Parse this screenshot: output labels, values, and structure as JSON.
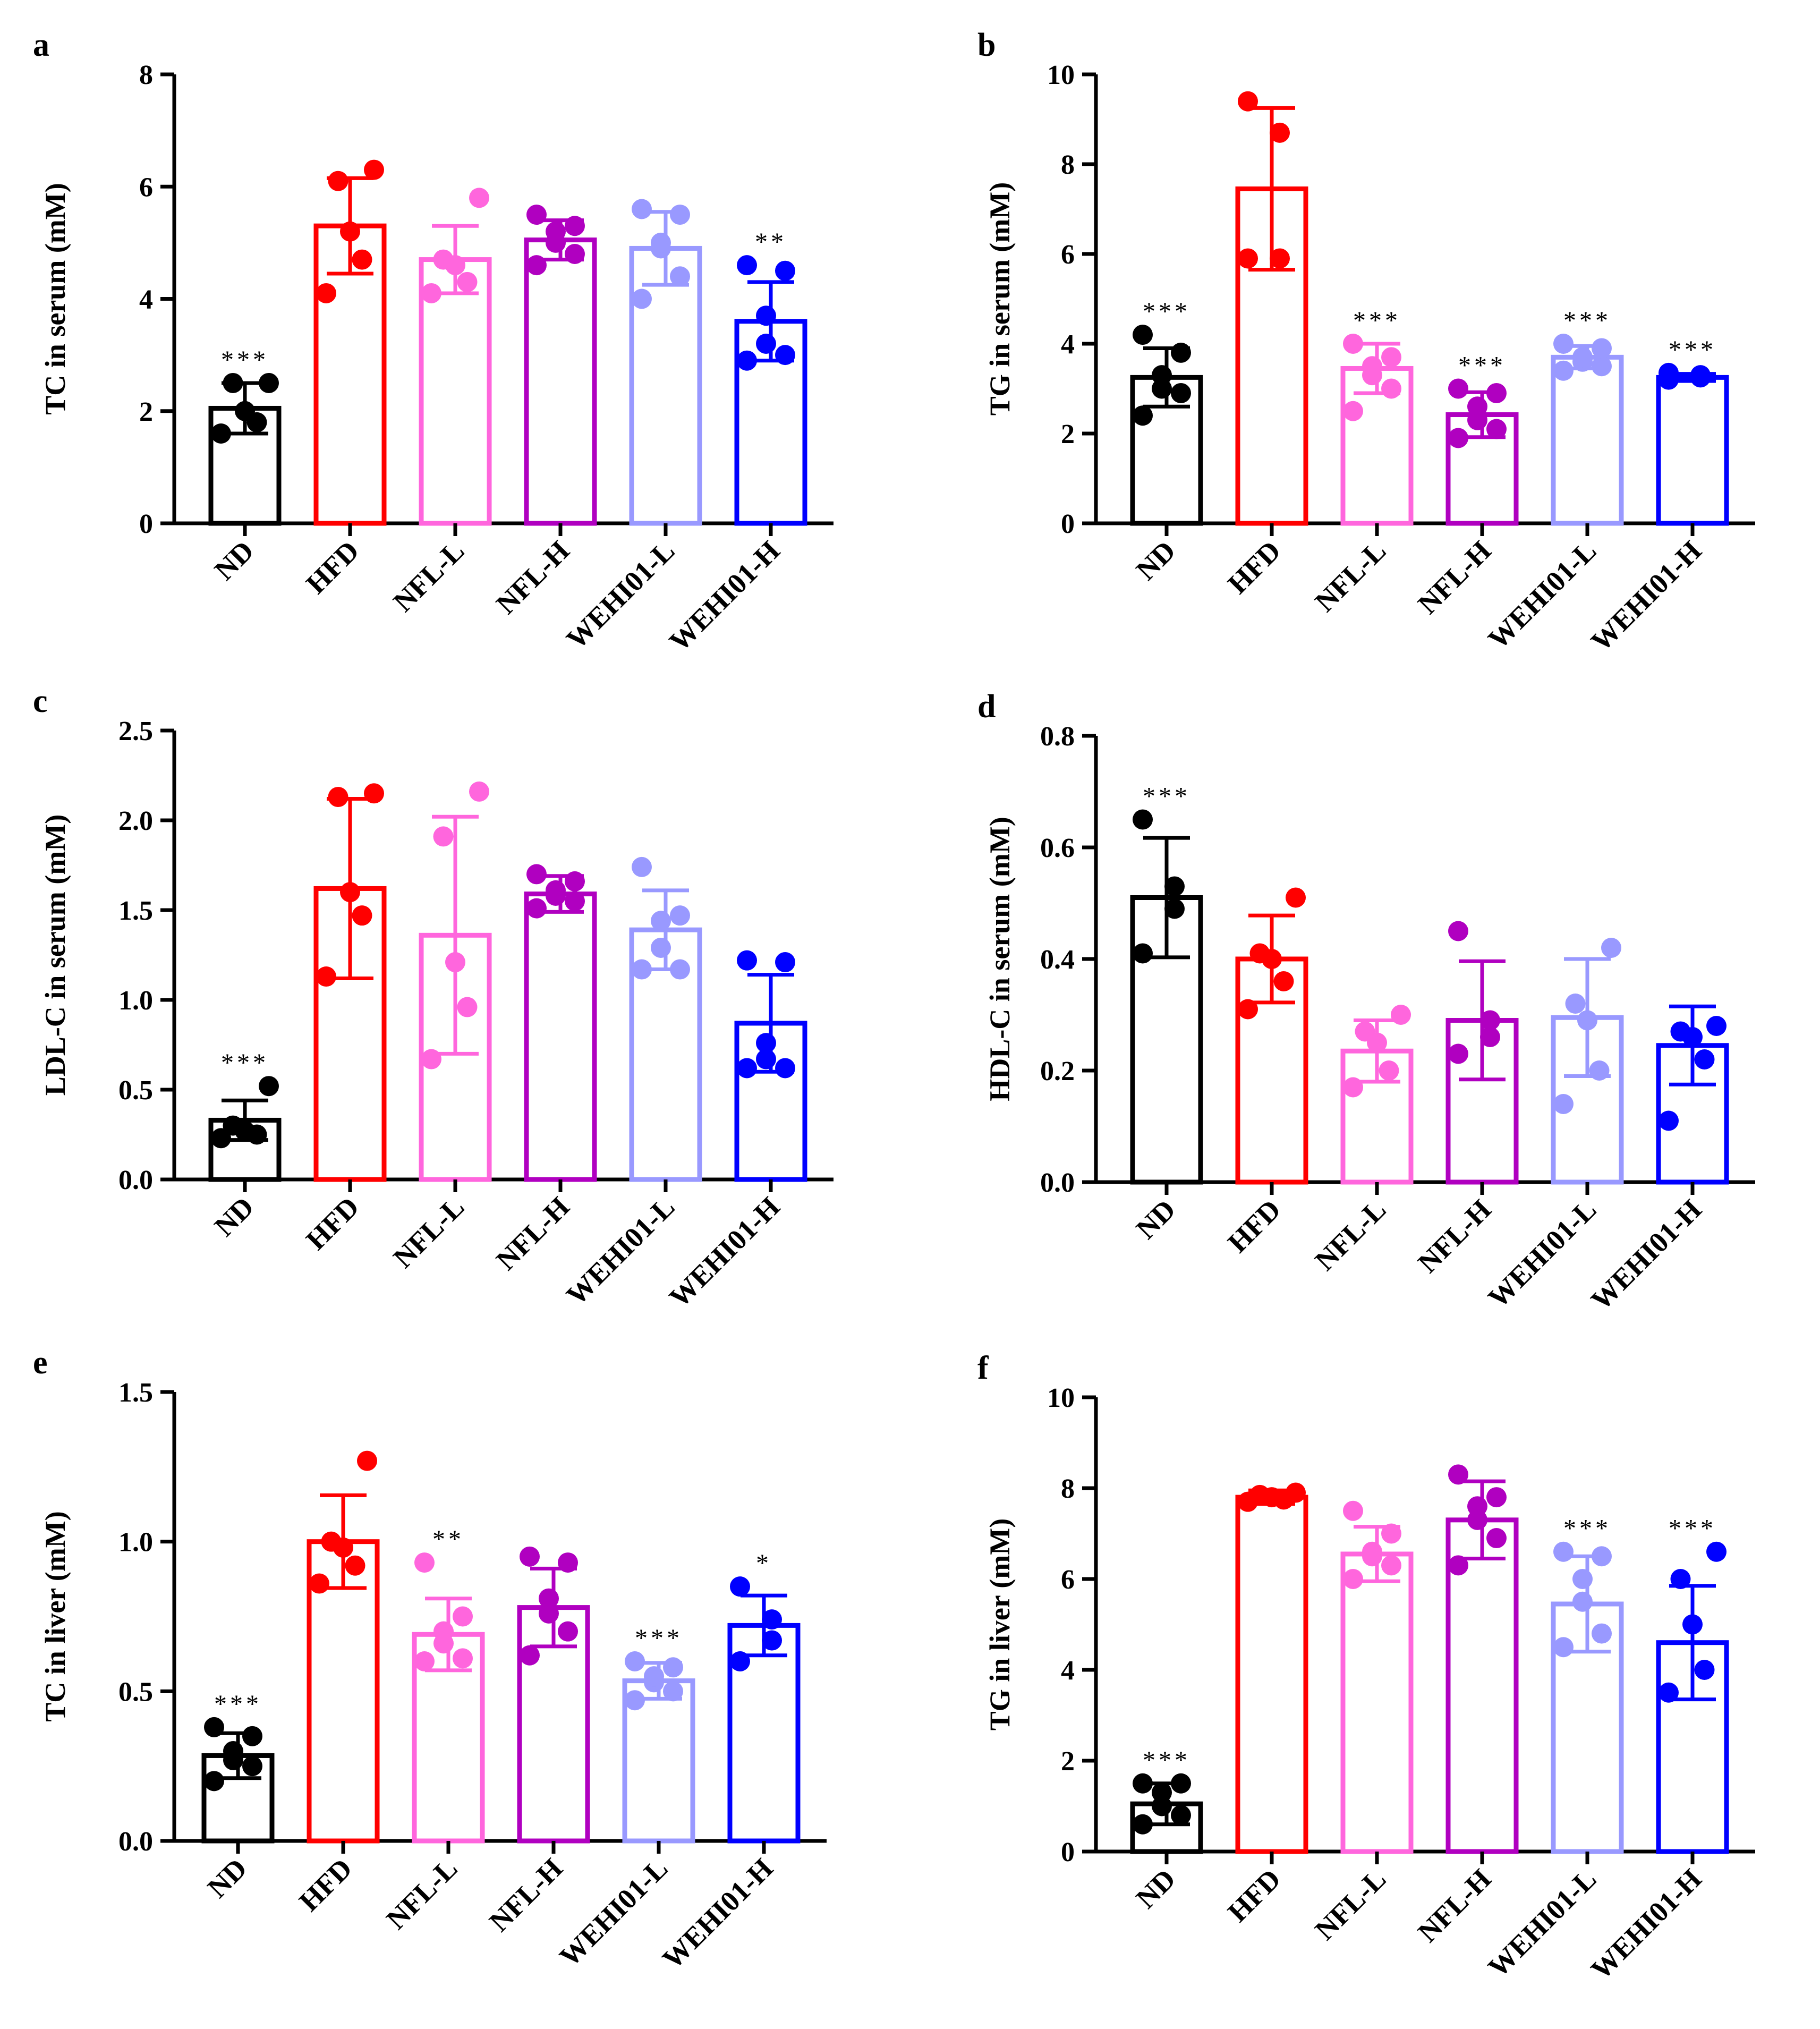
{
  "figure": {
    "categories": [
      "ND",
      "HFD",
      "NFL-L",
      "NFL-H",
      "WEHI01-L",
      "WEHI01-H"
    ],
    "colors": [
      "#000000",
      "#ff0000",
      "#ff66dd",
      "#b000c0",
      "#9999ff",
      "#0000ff"
    ]
  },
  "chart_data": [
    {
      "panel": "a",
      "type": "bar",
      "title": "",
      "ylabel": "TC in serum (mM)",
      "xlabel": "",
      "categories": [
        "ND",
        "HFD",
        "NFL-L",
        "NFL-H",
        "WEHI01-L",
        "WEHI01-H"
      ],
      "ylim": [
        0,
        8
      ],
      "yticks": [
        "0",
        "2",
        "4",
        "6",
        "8"
      ],
      "ytick_values": [
        0,
        2,
        4,
        6,
        8
      ],
      "values": [
        2.05,
        5.3,
        4.7,
        5.05,
        4.9,
        3.6
      ],
      "sd": [
        0.45,
        0.85,
        0.6,
        0.35,
        0.65,
        0.7
      ],
      "points": [
        [
          1.6,
          1.8,
          2.0,
          2.5,
          2.5
        ],
        [
          4.1,
          4.7,
          5.2,
          6.1,
          6.3
        ],
        [
          4.1,
          4.3,
          4.6,
          4.7,
          5.8
        ],
        [
          4.6,
          4.8,
          5.0,
          5.2,
          5.3,
          5.5
        ],
        [
          4.0,
          4.4,
          4.9,
          5.0,
          5.5,
          5.6
        ],
        [
          2.9,
          3.0,
          3.2,
          3.7,
          4.5,
          4.6
        ]
      ],
      "significance": [
        "***",
        "",
        "",
        "",
        "",
        "**"
      ]
    },
    {
      "panel": "b",
      "type": "bar",
      "title": "",
      "ylabel": "TG in serum (mM)",
      "xlabel": "",
      "categories": [
        "ND",
        "HFD",
        "NFL-L",
        "NFL-H",
        "WEHI01-L",
        "WEHI01-H"
      ],
      "ylim": [
        0,
        10
      ],
      "yticks": [
        "0",
        "2",
        "4",
        "6",
        "8",
        "10"
      ],
      "ytick_values": [
        0,
        2,
        4,
        6,
        8,
        10
      ],
      "values": [
        3.25,
        7.45,
        3.45,
        2.42,
        3.7,
        3.25
      ],
      "sd": [
        0.65,
        1.8,
        0.55,
        0.5,
        0.25,
        0.08
      ],
      "points": [
        [
          2.4,
          2.9,
          3.0,
          3.3,
          3.8,
          4.2
        ],
        [
          5.9,
          5.9,
          8.7,
          9.4
        ],
        [
          2.5,
          3.0,
          3.3,
          3.5,
          3.7,
          4.0
        ],
        [
          1.9,
          2.1,
          2.3,
          2.6,
          2.9,
          3.0
        ],
        [
          3.4,
          3.5,
          3.6,
          3.7,
          3.9,
          4.0
        ],
        [
          3.2,
          3.25,
          3.3,
          3.35
        ]
      ],
      "significance": [
        "***",
        "",
        "***",
        "***",
        "***",
        "***"
      ]
    },
    {
      "panel": "c",
      "type": "bar",
      "title": "",
      "ylabel": "LDL-C in serum (mM)",
      "xlabel": "",
      "categories": [
        "ND",
        "HFD",
        "NFL-L",
        "NFL-H",
        "WEHI01-L",
        "WEHI01-H"
      ],
      "ylim": [
        0,
        2.5
      ],
      "yticks": [
        "0.0",
        "0.5",
        "1.0",
        "1.5",
        "2.0",
        "2.5"
      ],
      "ytick_values": [
        0,
        0.5,
        1.0,
        1.5,
        2.0,
        2.5
      ],
      "values": [
        0.33,
        1.62,
        1.36,
        1.59,
        1.39,
        0.87
      ],
      "sd": [
        0.11,
        0.5,
        0.66,
        0.1,
        0.22,
        0.27
      ],
      "points": [
        [
          0.23,
          0.25,
          0.27,
          0.3,
          0.52
        ],
        [
          1.13,
          1.47,
          1.6,
          2.13,
          2.15
        ],
        [
          0.67,
          0.96,
          1.21,
          1.91,
          2.16
        ],
        [
          1.51,
          1.55,
          1.58,
          1.61,
          1.66,
          1.7
        ],
        [
          1.17,
          1.17,
          1.29,
          1.44,
          1.47,
          1.74
        ],
        [
          0.62,
          0.62,
          0.67,
          0.76,
          1.21,
          1.22
        ]
      ],
      "significance": [
        "***",
        "",
        "",
        "",
        "",
        ""
      ]
    },
    {
      "panel": "d",
      "type": "bar",
      "title": "",
      "ylabel": "HDL-C in serum (mM)",
      "xlabel": "",
      "categories": [
        "ND",
        "HFD",
        "NFL-L",
        "NFL-H",
        "WEHI01-L",
        "WEHI01-H"
      ],
      "ylim": [
        0,
        0.8
      ],
      "yticks": [
        "0.0",
        "0.2",
        "0.4",
        "0.6",
        "0.8"
      ],
      "ytick_values": [
        0,
        0.2,
        0.4,
        0.6,
        0.8
      ],
      "values": [
        0.51,
        0.4,
        0.235,
        0.29,
        0.295,
        0.245
      ],
      "sd": [
        0.107,
        0.078,
        0.055,
        0.106,
        0.105,
        0.07
      ],
      "points": [
        [
          0.41,
          0.49,
          0.53,
          0.65
        ],
        [
          0.31,
          0.36,
          0.4,
          0.41,
          0.51
        ],
        [
          0.17,
          0.2,
          0.25,
          0.27,
          0.3
        ],
        [
          0.23,
          0.26,
          0.29,
          0.45
        ],
        [
          0.14,
          0.2,
          0.29,
          0.32,
          0.42
        ],
        [
          0.11,
          0.22,
          0.26,
          0.27,
          0.28
        ]
      ],
      "significance": [
        "***",
        "",
        "",
        "",
        "",
        ""
      ]
    },
    {
      "panel": "e",
      "type": "bar",
      "title": "",
      "ylabel": "TC in liver (mM)",
      "xlabel": "",
      "categories": [
        "ND",
        "HFD",
        "NFL-L",
        "NFL-H",
        "WEHI01-L",
        "WEHI01-H"
      ],
      "ylim": [
        0,
        1.5
      ],
      "yticks": [
        "0.0",
        "0.5",
        "1.0",
        "1.5"
      ],
      "ytick_values": [
        0,
        0.5,
        1.0,
        1.5
      ],
      "values": [
        0.285,
        1.0,
        0.69,
        0.78,
        0.535,
        0.72
      ],
      "sd": [
        0.075,
        0.155,
        0.12,
        0.13,
        0.06,
        0.1
      ],
      "points": [
        [
          0.2,
          0.25,
          0.27,
          0.3,
          0.35,
          0.38
        ],
        [
          0.86,
          0.92,
          0.98,
          1.0,
          1.27
        ],
        [
          0.6,
          0.61,
          0.66,
          0.7,
          0.75,
          0.93
        ],
        [
          0.62,
          0.7,
          0.76,
          0.81,
          0.93,
          0.95
        ],
        [
          0.47,
          0.5,
          0.53,
          0.55,
          0.58,
          0.6
        ],
        [
          0.6,
          0.67,
          0.74,
          0.85
        ]
      ],
      "significance": [
        "***",
        "",
        "**",
        "",
        "***",
        "*"
      ]
    },
    {
      "panel": "f",
      "type": "bar",
      "title": "",
      "ylabel": "TG in liver (mM)",
      "xlabel": "",
      "categories": [
        "ND",
        "HFD",
        "NFL-L",
        "NFL-H",
        "WEHI01-L",
        "WEHI01-H"
      ],
      "ylim": [
        0,
        10
      ],
      "yticks": [
        "0",
        "2",
        "4",
        "6",
        "8",
        "10"
      ],
      "ytick_values": [
        0,
        2,
        4,
        6,
        8,
        10
      ],
      "values": [
        1.05,
        7.8,
        6.55,
        7.3,
        5.45,
        4.6
      ],
      "sd": [
        0.45,
        0.15,
        0.6,
        0.85,
        1.05,
        1.25
      ],
      "points": [
        [
          0.6,
          0.8,
          1.0,
          1.3,
          1.5,
          1.5
        ],
        [
          7.7,
          7.75,
          7.8,
          7.85,
          7.9
        ],
        [
          6.0,
          6.3,
          6.5,
          6.6,
          7.0,
          7.5
        ],
        [
          6.3,
          6.9,
          7.3,
          7.6,
          7.8,
          8.3
        ],
        [
          4.5,
          4.8,
          5.5,
          6.0,
          6.5,
          6.6
        ],
        [
          3.5,
          4.0,
          5.0,
          6.0,
          6.6
        ]
      ],
      "significance": [
        "***",
        "",
        "",
        "",
        "***",
        "***"
      ]
    }
  ]
}
